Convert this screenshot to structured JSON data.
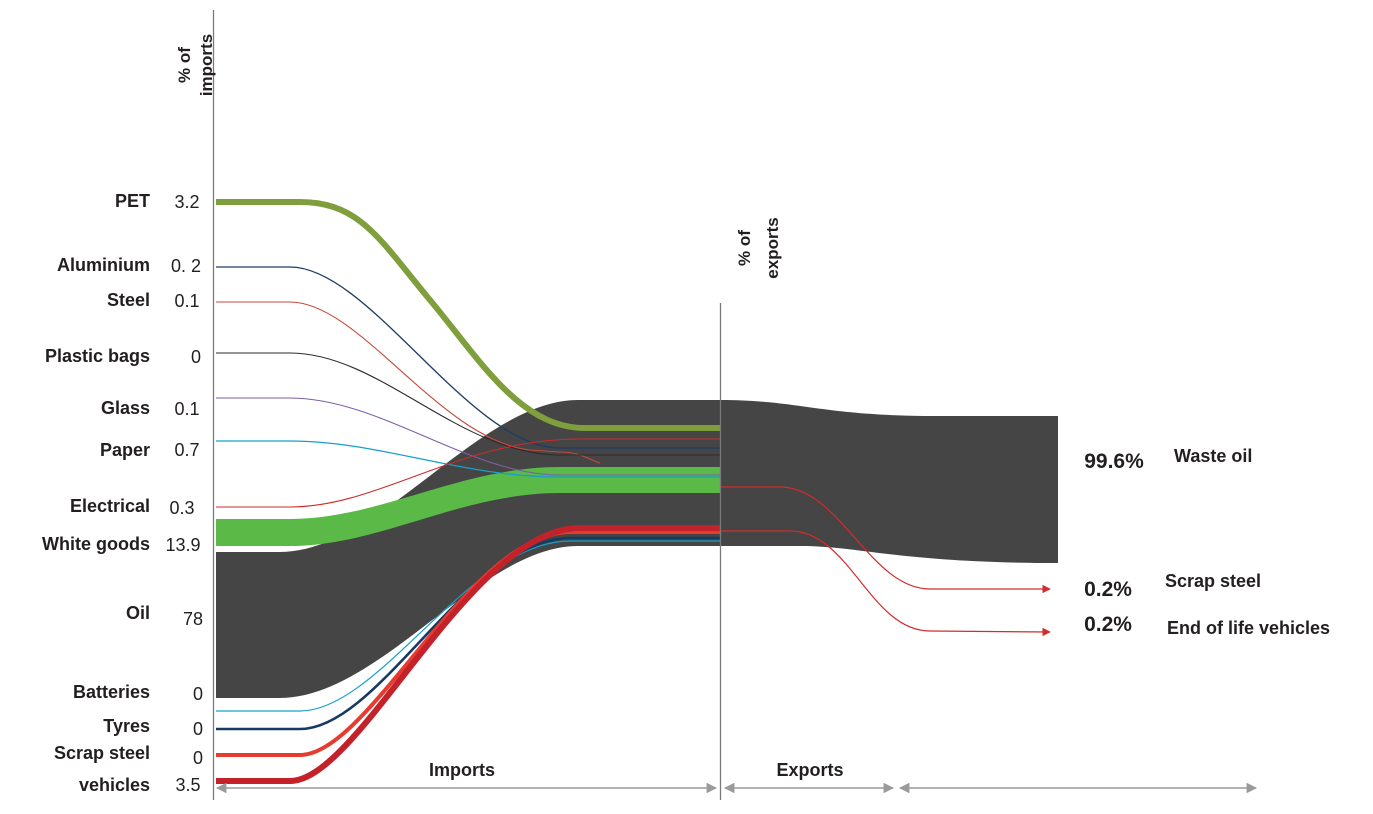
{
  "axis_headers": {
    "imports": [
      "% of",
      "imports"
    ],
    "exports": [
      "% of",
      "exports"
    ]
  },
  "sections": {
    "imports": "Imports",
    "exports": "Exports"
  },
  "colors": {
    "oil": "#454545",
    "pet": "#7f9f3d",
    "white_goods": "#5ab947",
    "red": "#d42b2b",
    "navy": "#173a63"
  },
  "imports": [
    {
      "label": "PET",
      "value": "3.2",
      "color": "#7f9f3d"
    },
    {
      "label": "Aluminium",
      "value": "0. 2",
      "color": "#1f3d66"
    },
    {
      "label": "Steel",
      "value": "0.1",
      "color": "#c44a3a"
    },
    {
      "label": "Plastic bags",
      "value": "0",
      "color": "#2b2b2b"
    },
    {
      "label": "Glass",
      "value": "0.1",
      "color": "#7e5fa5"
    },
    {
      "label": "Paper",
      "value": "0.7",
      "color": "#16a0c8"
    },
    {
      "label": "Electrical",
      "value": "0.3",
      "color": "#cf2a2a"
    },
    {
      "label": "White goods",
      "value": "13.9",
      "color": "#5ab947"
    },
    {
      "label": "Oil",
      "value": "78",
      "color": "#454545"
    },
    {
      "label": "Batteries",
      "value": "0",
      "color": "#16a0c8"
    },
    {
      "label": "Tyres",
      "value": "0",
      "color": "#173a63"
    },
    {
      "label": "Scrap steel",
      "value": "0",
      "color": "#e63b2e"
    },
    {
      "label": "vehicles",
      "value": "3.5",
      "color": "#c4222a"
    }
  ],
  "exports": [
    {
      "label": "Waste oil",
      "value": "99.6%"
    },
    {
      "label": "Scrap steel",
      "value": "0.2%"
    },
    {
      "label": "End of life vehicles",
      "value": "0.2%"
    }
  ]
}
